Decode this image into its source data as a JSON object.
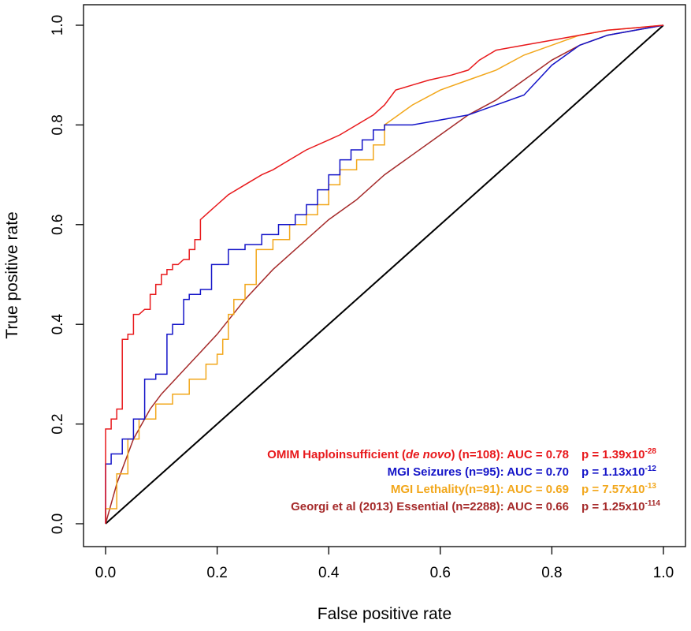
{
  "chart_data": {
    "type": "line",
    "xlabel": "False positive rate",
    "ylabel": "True positive rate",
    "xlim": [
      0,
      1
    ],
    "ylim": [
      0,
      1
    ],
    "xticks": [
      "0.0",
      "0.2",
      "0.4",
      "0.6",
      "0.8",
      "1.0"
    ],
    "yticks": [
      "0.0",
      "0.2",
      "0.4",
      "0.6",
      "0.8",
      "1.0"
    ],
    "grid": false,
    "legend_position": "bottom-right",
    "series": [
      {
        "name": "OMIM Haploinsufficient (de novo) (n=108): AUC = 0.78",
        "label_pre": "OMIM Haploinsufficient (",
        "label_italic": "de novo",
        "label_post": ") (n=108): AUC = 0.78",
        "p_base": "p = 1.39x10",
        "p_exp": "-28",
        "color": "#e8191c",
        "step": true,
        "x": [
          0,
          0,
          0.01,
          0.01,
          0.02,
          0.02,
          0.03,
          0.03,
          0.04,
          0.04,
          0.05,
          0.05,
          0.06,
          0.07,
          0.08,
          0.08,
          0.09,
          0.09,
          0.1,
          0.1,
          0.11,
          0.11,
          0.12,
          0.12,
          0.13,
          0.14,
          0.15,
          0.15,
          0.16,
          0.16,
          0.17,
          0.17,
          0.18,
          0.19,
          0.2,
          0.22,
          0.25,
          0.28,
          0.3,
          0.33,
          0.36,
          0.4,
          0.42,
          0.45,
          0.48,
          0.5,
          0.52,
          0.55,
          0.58,
          0.62,
          0.65,
          0.67,
          0.7,
          0.75,
          0.8,
          0.85,
          0.9,
          0.95,
          1.0
        ],
        "y": [
          0,
          0.19,
          0.19,
          0.21,
          0.21,
          0.23,
          0.23,
          0.37,
          0.37,
          0.38,
          0.38,
          0.42,
          0.42,
          0.43,
          0.43,
          0.46,
          0.46,
          0.48,
          0.48,
          0.5,
          0.5,
          0.51,
          0.51,
          0.52,
          0.52,
          0.53,
          0.53,
          0.55,
          0.55,
          0.57,
          0.57,
          0.61,
          0.62,
          0.63,
          0.64,
          0.66,
          0.68,
          0.7,
          0.71,
          0.73,
          0.75,
          0.77,
          0.78,
          0.8,
          0.82,
          0.84,
          0.87,
          0.88,
          0.89,
          0.9,
          0.91,
          0.93,
          0.95,
          0.96,
          0.97,
          0.98,
          0.99,
          0.995,
          1.0
        ]
      },
      {
        "name": "MGI Seizures (n=95): AUC = 0.70",
        "label_pre": "MGI Seizures (n=95): AUC = 0.70",
        "label_italic": "",
        "label_post": "",
        "p_base": "p = 1.13x10",
        "p_exp": "-12",
        "color": "#1414c8",
        "step": true,
        "x": [
          0,
          0,
          0.01,
          0.01,
          0.03,
          0.03,
          0.05,
          0.05,
          0.07,
          0.07,
          0.09,
          0.09,
          0.11,
          0.11,
          0.12,
          0.12,
          0.14,
          0.14,
          0.15,
          0.15,
          0.17,
          0.17,
          0.19,
          0.19,
          0.22,
          0.22,
          0.25,
          0.25,
          0.28,
          0.28,
          0.31,
          0.31,
          0.34,
          0.34,
          0.36,
          0.36,
          0.38,
          0.38,
          0.4,
          0.4,
          0.42,
          0.42,
          0.44,
          0.44,
          0.46,
          0.46,
          0.48,
          0.48,
          0.5,
          0.5,
          0.52,
          0.55,
          0.6,
          0.65,
          0.7,
          0.75,
          0.8,
          0.85,
          0.9,
          0.95,
          1.0
        ],
        "y": [
          0,
          0.12,
          0.12,
          0.14,
          0.14,
          0.17,
          0.17,
          0.21,
          0.21,
          0.29,
          0.29,
          0.3,
          0.3,
          0.38,
          0.38,
          0.4,
          0.4,
          0.45,
          0.45,
          0.46,
          0.46,
          0.47,
          0.47,
          0.52,
          0.52,
          0.55,
          0.55,
          0.56,
          0.56,
          0.58,
          0.58,
          0.6,
          0.6,
          0.62,
          0.62,
          0.64,
          0.64,
          0.67,
          0.67,
          0.7,
          0.7,
          0.73,
          0.73,
          0.75,
          0.75,
          0.77,
          0.77,
          0.79,
          0.79,
          0.8,
          0.8,
          0.8,
          0.81,
          0.82,
          0.84,
          0.86,
          0.92,
          0.96,
          0.98,
          0.99,
          1.0
        ]
      },
      {
        "name": "MGI Lethality(n=91): AUC = 0.69",
        "label_pre": "MGI Lethality(n=91): AUC = 0.69",
        "label_italic": "",
        "label_post": "",
        "p_base": "p = 7.57x10",
        "p_exp": "-13",
        "color": "#f2a71b",
        "step": true,
        "x": [
          0,
          0,
          0.02,
          0.02,
          0.04,
          0.04,
          0.06,
          0.06,
          0.09,
          0.09,
          0.12,
          0.12,
          0.15,
          0.15,
          0.18,
          0.18,
          0.2,
          0.2,
          0.21,
          0.21,
          0.22,
          0.22,
          0.23,
          0.23,
          0.25,
          0.25,
          0.27,
          0.27,
          0.3,
          0.3,
          0.33,
          0.33,
          0.36,
          0.36,
          0.38,
          0.38,
          0.4,
          0.4,
          0.42,
          0.42,
          0.45,
          0.45,
          0.48,
          0.48,
          0.5,
          0.5,
          0.55,
          0.6,
          0.65,
          0.7,
          0.75,
          0.8,
          0.85,
          0.9,
          0.95,
          1.0
        ],
        "y": [
          0,
          0.03,
          0.03,
          0.1,
          0.1,
          0.17,
          0.17,
          0.21,
          0.21,
          0.24,
          0.24,
          0.26,
          0.26,
          0.29,
          0.29,
          0.32,
          0.32,
          0.34,
          0.34,
          0.37,
          0.37,
          0.42,
          0.42,
          0.45,
          0.45,
          0.48,
          0.48,
          0.55,
          0.55,
          0.57,
          0.57,
          0.6,
          0.6,
          0.62,
          0.62,
          0.64,
          0.64,
          0.68,
          0.68,
          0.71,
          0.71,
          0.73,
          0.73,
          0.76,
          0.76,
          0.8,
          0.84,
          0.87,
          0.89,
          0.91,
          0.94,
          0.96,
          0.98,
          0.99,
          0.995,
          1.0
        ]
      },
      {
        "name": "Georgi et al (2013) Essential (n=2288): AUC = 0.66",
        "label_pre": "Georgi et al (2013) Essential (n=2288): AUC = 0.66",
        "label_italic": "",
        "label_post": "",
        "p_base": "p = 1.25x10",
        "p_exp": "-114",
        "color": "#a52a2a",
        "step": false,
        "x": [
          0,
          0.02,
          0.05,
          0.08,
          0.1,
          0.15,
          0.2,
          0.25,
          0.3,
          0.35,
          0.4,
          0.45,
          0.5,
          0.55,
          0.6,
          0.65,
          0.7,
          0.75,
          0.8,
          0.85,
          0.9,
          0.95,
          1.0
        ],
        "y": [
          0,
          0.08,
          0.17,
          0.23,
          0.26,
          0.32,
          0.38,
          0.45,
          0.51,
          0.56,
          0.61,
          0.65,
          0.7,
          0.74,
          0.78,
          0.82,
          0.85,
          0.89,
          0.93,
          0.96,
          0.98,
          0.99,
          1.0
        ]
      }
    ],
    "reference_line": {
      "x": [
        0,
        1
      ],
      "y": [
        0,
        1
      ],
      "color": "#000000"
    }
  }
}
